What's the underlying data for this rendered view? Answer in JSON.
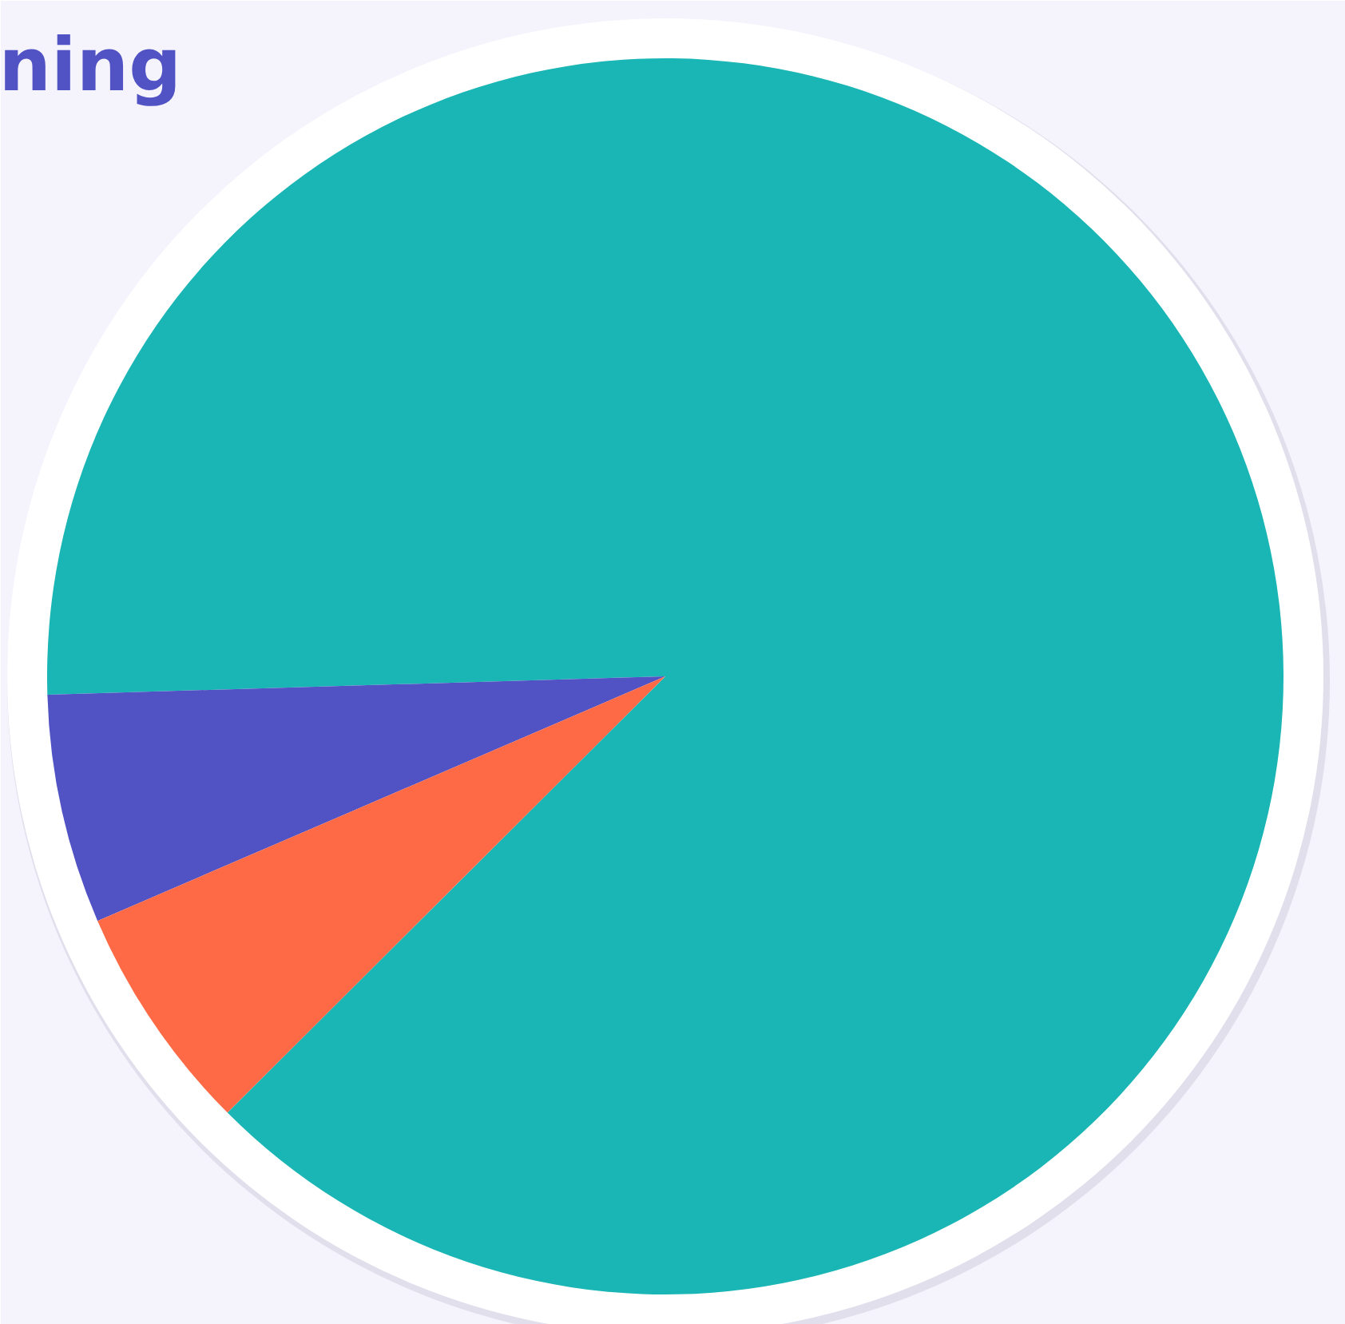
{
  "chart_data": {
    "type": "pie",
    "title": "ning",
    "categories": [
      null,
      null,
      null
    ],
    "values": [
      88,
      6,
      6
    ],
    "colors": [
      "#1ab6b5",
      "#5152c4",
      "#fd6a45"
    ]
  }
}
